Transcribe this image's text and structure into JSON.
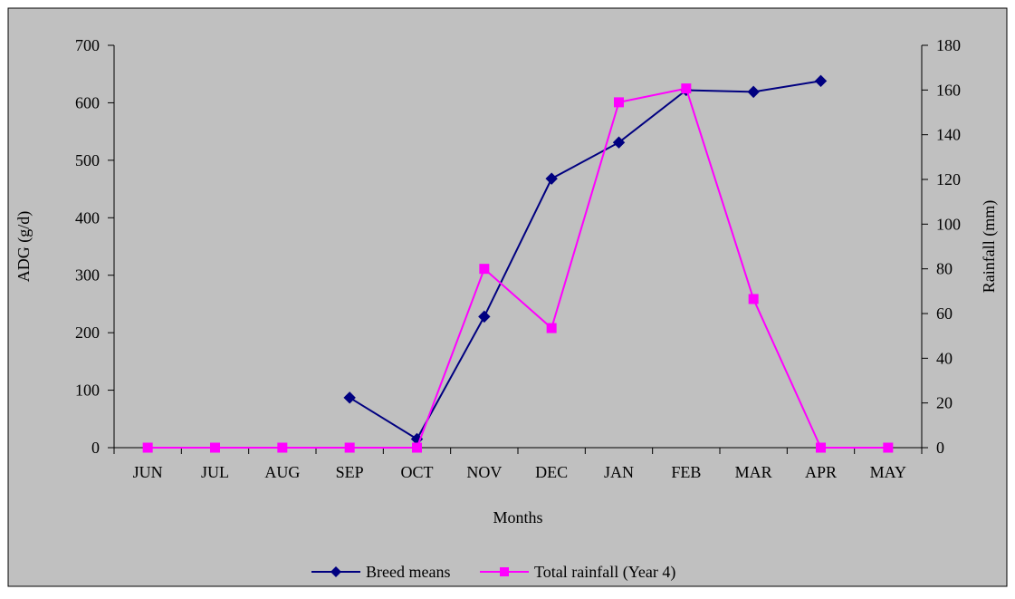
{
  "chart_data": {
    "type": "line",
    "title": "",
    "xlabel": "Months",
    "ylabel": "ADG (g/d)",
    "y2label": "Rainfall (mm)",
    "categories": [
      "JUN",
      "JUL",
      "AUG",
      "SEP",
      "OCT",
      "NOV",
      "DEC",
      "JAN",
      "FEB",
      "MAR",
      "APR",
      "MAY"
    ],
    "ylim": [
      0,
      700
    ],
    "y2lim": [
      0,
      180
    ],
    "yticks": [
      "0",
      "100",
      "200",
      "300",
      "400",
      "500",
      "600",
      "700"
    ],
    "y2ticks": [
      "0",
      "20",
      "40",
      "60",
      "80",
      "100",
      "120",
      "140",
      "160",
      "180"
    ],
    "grid": false,
    "legend_position": "bottom",
    "series": [
      {
        "name": "Breed means",
        "axis": "left",
        "color": "#000080",
        "marker": "diamond",
        "values": [
          null,
          null,
          null,
          87,
          15,
          228,
          468,
          531,
          622,
          619,
          638,
          null
        ]
      },
      {
        "name": "Total rainfall (Year 4)",
        "axis": "right",
        "color": "#FF00FF",
        "marker": "square",
        "values": [
          0,
          0,
          0,
          0,
          0,
          80,
          53.5,
          154.5,
          160.7,
          66.5,
          0,
          0
        ]
      }
    ]
  },
  "colors": {
    "plot_background": "#C0C0C0",
    "outer_background": "#C0C0C0"
  }
}
